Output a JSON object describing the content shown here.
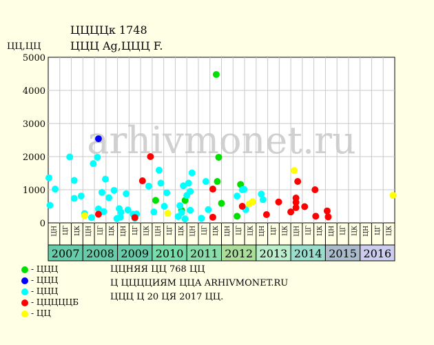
{
  "header": {
    "title_line1": "ЦЦЦЦк 1748",
    "title_line2": "ЦЦЦ Ag,ЦЦЦ F."
  },
  "ylabel": "ЦЦ,ЦЦ",
  "watermark": "arhivmonet.ru",
  "legend": [
    {
      "label": "- ЦЦЦ",
      "color": "#00e000"
    },
    {
      "label": "- ЦЦЦ",
      "color": "#0000ff"
    },
    {
      "label": "- ЦЦЦ",
      "color": "#00ffff"
    },
    {
      "label": "- ЦЦЦЦЦБ",
      "color": "#ff0000"
    },
    {
      "label": "- ЦЦ",
      "color": "#ffff00"
    }
  ],
  "notes": [
    "ЦЦНЯЯ ЦЦ 768 ЦЦ",
    "Ц ЦЦЦЦИЯМ ЦЦА ARHIVMONET.RU",
    "ЦЦЦ Ц 20 ЦЯ 2017 ЦЦ."
  ],
  "chart_data": {
    "type": "scatter",
    "ylim": [
      0,
      5000
    ],
    "yticks": [
      0,
      1000,
      2000,
      3000,
      4000,
      5000
    ],
    "grid": true,
    "months": [
      "ЦН",
      "ЦГ",
      "ЦК"
    ],
    "years": [
      {
        "label": "2007",
        "color": "#66ccaa"
      },
      {
        "label": "2008",
        "color": "#66ccaa"
      },
      {
        "label": "2009",
        "color": "#66ccaa"
      },
      {
        "label": "2010",
        "color": "#77ddaa"
      },
      {
        "label": "2011",
        "color": "#88ddaa"
      },
      {
        "label": "2012",
        "color": "#aadd99"
      },
      {
        "label": "2013",
        "color": "#bbeecc"
      },
      {
        "label": "2014",
        "color": "#99ddcc"
      },
      {
        "label": "2015",
        "color": "#aabbcc"
      },
      {
        "label": "2016",
        "color": "#ccccee"
      }
    ],
    "series": [
      {
        "key": "green",
        "color": "#00e000",
        "points": [
          [
            2010.1,
            680
          ],
          [
            2010.85,
            380
          ],
          [
            2010.95,
            680
          ],
          [
            2011.85,
            4480
          ],
          [
            2011.88,
            1250
          ],
          [
            2011.92,
            1980
          ],
          [
            2012.0,
            590
          ],
          [
            2012.45,
            200
          ],
          [
            2012.55,
            1160
          ]
        ]
      },
      {
        "key": "blue",
        "color": "#0000ff",
        "points": [
          [
            2008.45,
            2540
          ]
        ]
      },
      {
        "key": "cyan",
        "color": "#00ffff",
        "points": [
          [
            2007.02,
            1360
          ],
          [
            2007.05,
            530
          ],
          [
            2007.2,
            1020
          ],
          [
            2007.62,
            1990
          ],
          [
            2007.75,
            740
          ],
          [
            2007.75,
            1280
          ],
          [
            2007.95,
            810
          ],
          [
            2008.05,
            280
          ],
          [
            2008.25,
            160
          ],
          [
            2008.3,
            1790
          ],
          [
            2008.42,
            1980
          ],
          [
            2008.45,
            420
          ],
          [
            2008.55,
            920
          ],
          [
            2008.6,
            340
          ],
          [
            2008.65,
            1320
          ],
          [
            2008.75,
            760
          ],
          [
            2008.9,
            980
          ],
          [
            2008.98,
            130
          ],
          [
            2009.05,
            430
          ],
          [
            2009.08,
            170
          ],
          [
            2009.1,
            320
          ],
          [
            2009.25,
            880
          ],
          [
            2009.3,
            390
          ],
          [
            2009.45,
            260
          ],
          [
            2009.5,
            140
          ],
          [
            2009.55,
            270
          ],
          [
            2009.9,
            1110
          ],
          [
            2010.05,
            330
          ],
          [
            2010.2,
            1590
          ],
          [
            2010.25,
            1200
          ],
          [
            2010.35,
            500
          ],
          [
            2010.42,
            910
          ],
          [
            2010.75,
            190
          ],
          [
            2010.8,
            520
          ],
          [
            2010.85,
            310
          ],
          [
            2010.9,
            1120
          ],
          [
            2010.95,
            120
          ],
          [
            2011.0,
            830
          ],
          [
            2011.05,
            1200
          ],
          [
            2011.1,
            380
          ],
          [
            2011.1,
            950
          ],
          [
            2011.15,
            1510
          ],
          [
            2011.42,
            140
          ],
          [
            2011.55,
            1250
          ],
          [
            2011.62,
            400
          ],
          [
            2012.45,
            810
          ],
          [
            2012.6,
            1000
          ],
          [
            2012.65,
            1010
          ],
          [
            2012.7,
            400
          ],
          [
            2013.15,
            870
          ],
          [
            2013.2,
            700
          ]
        ]
      },
      {
        "key": "red",
        "color": "#ff0000",
        "points": [
          [
            2008.45,
            260
          ],
          [
            2009.5,
            160
          ],
          [
            2009.72,
            1270
          ],
          [
            2009.95,
            2000
          ],
          [
            2011.75,
            1020
          ],
          [
            2011.75,
            170
          ],
          [
            2012.6,
            500
          ],
          [
            2013.3,
            250
          ],
          [
            2013.65,
            630
          ],
          [
            2014.0,
            330
          ],
          [
            2014.15,
            750
          ],
          [
            2014.15,
            620
          ],
          [
            2014.15,
            460
          ],
          [
            2014.2,
            1250
          ],
          [
            2014.4,
            490
          ],
          [
            2014.7,
            1000
          ],
          [
            2014.72,
            200
          ],
          [
            2015.05,
            360
          ],
          [
            2015.08,
            180
          ]
        ]
      },
      {
        "key": "yellow",
        "color": "#ffff00",
        "points": [
          [
            2008.05,
            220
          ],
          [
            2010.45,
            290
          ],
          [
            2012.8,
            570
          ],
          [
            2012.9,
            640
          ],
          [
            2014.1,
            1580
          ],
          [
            2016.95,
            830
          ]
        ]
      }
    ]
  }
}
